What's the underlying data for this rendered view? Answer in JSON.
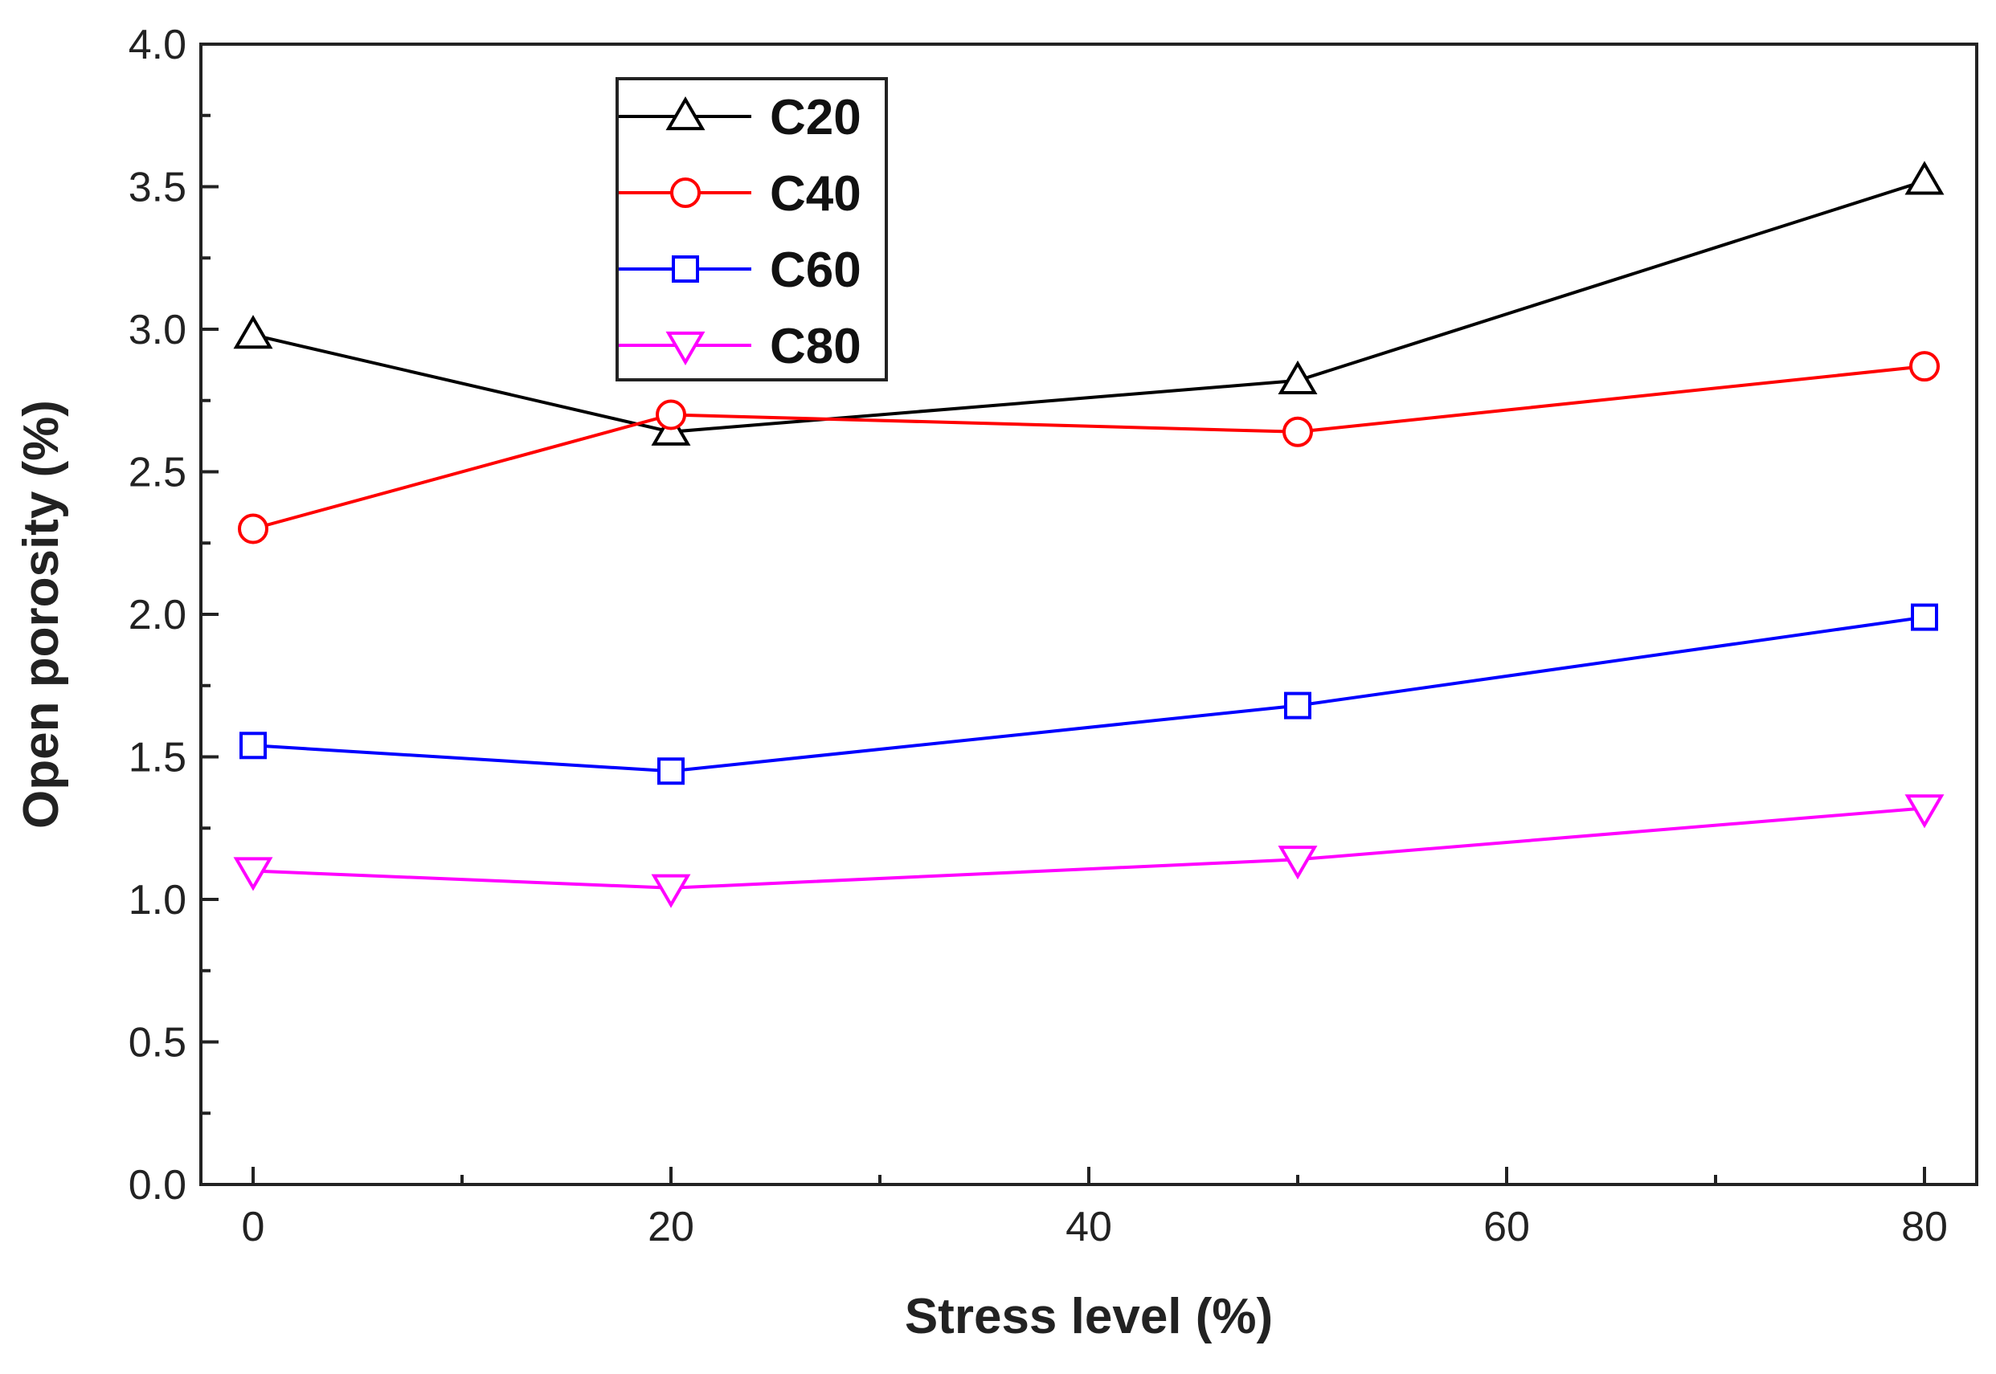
{
  "chart_data": {
    "type": "line",
    "title": "",
    "xlabel": "Stress level (%)",
    "ylabel": "Open porosity (%)",
    "xlim": [
      -2.5,
      82.5
    ],
    "ylim": [
      0,
      4.0
    ],
    "x_ticks": [
      0,
      20,
      40,
      60,
      80
    ],
    "x_tick_labels": [
      "0",
      "20",
      "40",
      "60",
      "80"
    ],
    "y_ticks": [
      0,
      0.5,
      1.0,
      1.5,
      2.0,
      2.5,
      3.0,
      3.5,
      4.0
    ],
    "y_tick_labels": [
      "0.0",
      "0.5",
      "1.0",
      "1.5",
      "2.0",
      "2.5",
      "3.0",
      "3.5",
      "4.0"
    ],
    "grid": false,
    "legend_position": "top-left",
    "x": [
      0,
      20,
      50,
      80
    ],
    "series": [
      {
        "name": "C20",
        "values": [
          2.98,
          2.64,
          2.82,
          3.52
        ],
        "color": "#000000",
        "marker": "triangle-up"
      },
      {
        "name": "C40",
        "values": [
          2.3,
          2.7,
          2.64,
          2.87
        ],
        "color": "#ff0000",
        "marker": "circle"
      },
      {
        "name": "C60",
        "values": [
          1.54,
          1.45,
          1.68,
          1.99
        ],
        "color": "#0000ff",
        "marker": "square"
      },
      {
        "name": "C80",
        "values": [
          1.1,
          1.04,
          1.14,
          1.32
        ],
        "color": "#ff00ff",
        "marker": "triangle-down"
      }
    ]
  }
}
